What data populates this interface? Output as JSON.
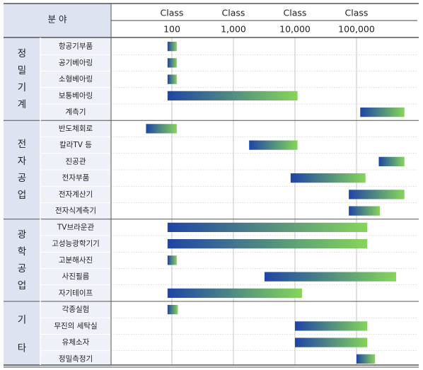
{
  "chart_data": {
    "type": "bar",
    "header_field": "분 야",
    "classes": [
      {
        "top": "Class",
        "value": "100"
      },
      {
        "top": "Class",
        "value": "1,000"
      },
      {
        "top": "Class",
        "value": "10,000"
      },
      {
        "top": "Class",
        "value": "100,000"
      }
    ],
    "x_scale": "log",
    "colors": {
      "bar_start": "#1f44a6",
      "bar_end": "#86d55a",
      "group_bg": "#dde3f1",
      "item_bg": "#eef1f8"
    },
    "groups": [
      {
        "label": [
          "정",
          "밀",
          "기",
          "계"
        ],
        "items": [
          {
            "name": "항공기부품",
            "start": 85,
            "end": 120
          },
          {
            "name": "공기베아링",
            "start": 85,
            "end": 120
          },
          {
            "name": "소형베아링",
            "start": 85,
            "end": 120
          },
          {
            "name": "보통베아링",
            "start": 85,
            "end": 11000
          },
          {
            "name": "계측기",
            "start": 115000,
            "end": 600000
          }
        ]
      },
      {
        "label": [
          "전",
          "자",
          "공",
          "업"
        ],
        "items": [
          {
            "name": "반도체회로",
            "start": 38,
            "end": 120
          },
          {
            "name": "칼라TV 등",
            "start": 1800,
            "end": 11000
          },
          {
            "name": "진공관",
            "start": 230000,
            "end": 600000
          },
          {
            "name": "전자부품",
            "start": 8500,
            "end": 140000
          },
          {
            "name": "전자계산기",
            "start": 75000,
            "end": 600000
          },
          {
            "name": "전자식계측기",
            "start": 75000,
            "end": 240000
          }
        ]
      },
      {
        "label": [
          "광",
          "학",
          "공",
          "업"
        ],
        "items": [
          {
            "name": "TV브라운관",
            "start": 85,
            "end": 150000
          },
          {
            "name": "고성능광학기기",
            "start": 85,
            "end": 150000
          },
          {
            "name": "고분해사진",
            "start": 85,
            "end": 120
          },
          {
            "name": "사진필름",
            "start": 3200,
            "end": 440000
          },
          {
            "name": "자기테이프",
            "start": 85,
            "end": 13000
          }
        ]
      },
      {
        "label": [
          "기",
          "타"
        ],
        "items": [
          {
            "name": "각종실험",
            "start": 85,
            "end": 125
          },
          {
            "name": "무진의 세탁실",
            "start": 10000,
            "end": 150000
          },
          {
            "name": "유체소자",
            "start": 10000,
            "end": 150000
          },
          {
            "name": "정밀측정기",
            "start": 100000,
            "end": 200000
          }
        ]
      }
    ]
  }
}
